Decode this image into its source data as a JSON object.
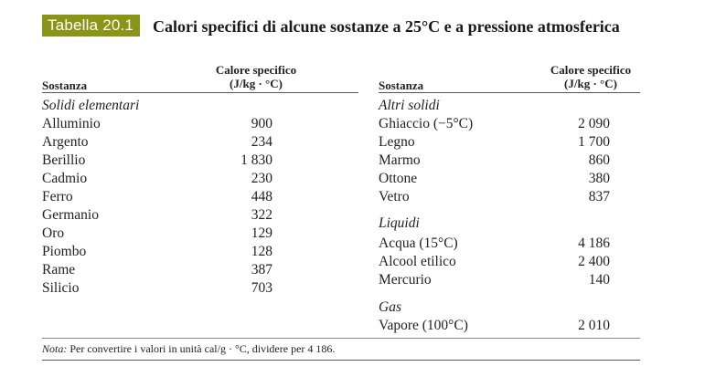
{
  "table": {
    "tag": "Tabella 20.1",
    "title": "Calori specifici di alcune sostanze a 25°C e a pressione atmosferica",
    "col_substance": "Sostanza",
    "col_value_line1": "Calore specifico",
    "col_value_line2": "(J/kg · °C)",
    "left": {
      "group": "Solidi elementari",
      "rows": [
        {
          "name": "Alluminio",
          "value": "900"
        },
        {
          "name": "Argento",
          "value": "234"
        },
        {
          "name": "Berillio",
          "value": "1 830"
        },
        {
          "name": "Cadmio",
          "value": "230"
        },
        {
          "name": "Ferro",
          "value": "448"
        },
        {
          "name": "Germanio",
          "value": "322"
        },
        {
          "name": "Oro",
          "value": "129"
        },
        {
          "name": "Piombo",
          "value": "128"
        },
        {
          "name": "Rame",
          "value": "387"
        },
        {
          "name": "Silicio",
          "value": "703"
        }
      ]
    },
    "right": {
      "groups": [
        {
          "label": "Altri solidi",
          "rows": [
            {
              "name": "Ghiaccio (−5°C)",
              "value": "2 090"
            },
            {
              "name": "Legno",
              "value": "1 700"
            },
            {
              "name": "Marmo",
              "value": "860"
            },
            {
              "name": "Ottone",
              "value": "380"
            },
            {
              "name": "Vetro",
              "value": "837"
            }
          ]
        },
        {
          "label": "Liquidi",
          "rows": [
            {
              "name": "Acqua (15°C)",
              "value": "4 186"
            },
            {
              "name": "Alcool etilico",
              "value": "2 400"
            },
            {
              "name": "Mercurio",
              "value": "140"
            }
          ]
        },
        {
          "label": "Gas",
          "rows": [
            {
              "name": "Vapore (100°C)",
              "value": "2 010"
            }
          ]
        }
      ]
    },
    "note_label": "Nota:",
    "note_text": " Per convertire i valori in unità cal/g · °C, dividere per 4 186."
  }
}
